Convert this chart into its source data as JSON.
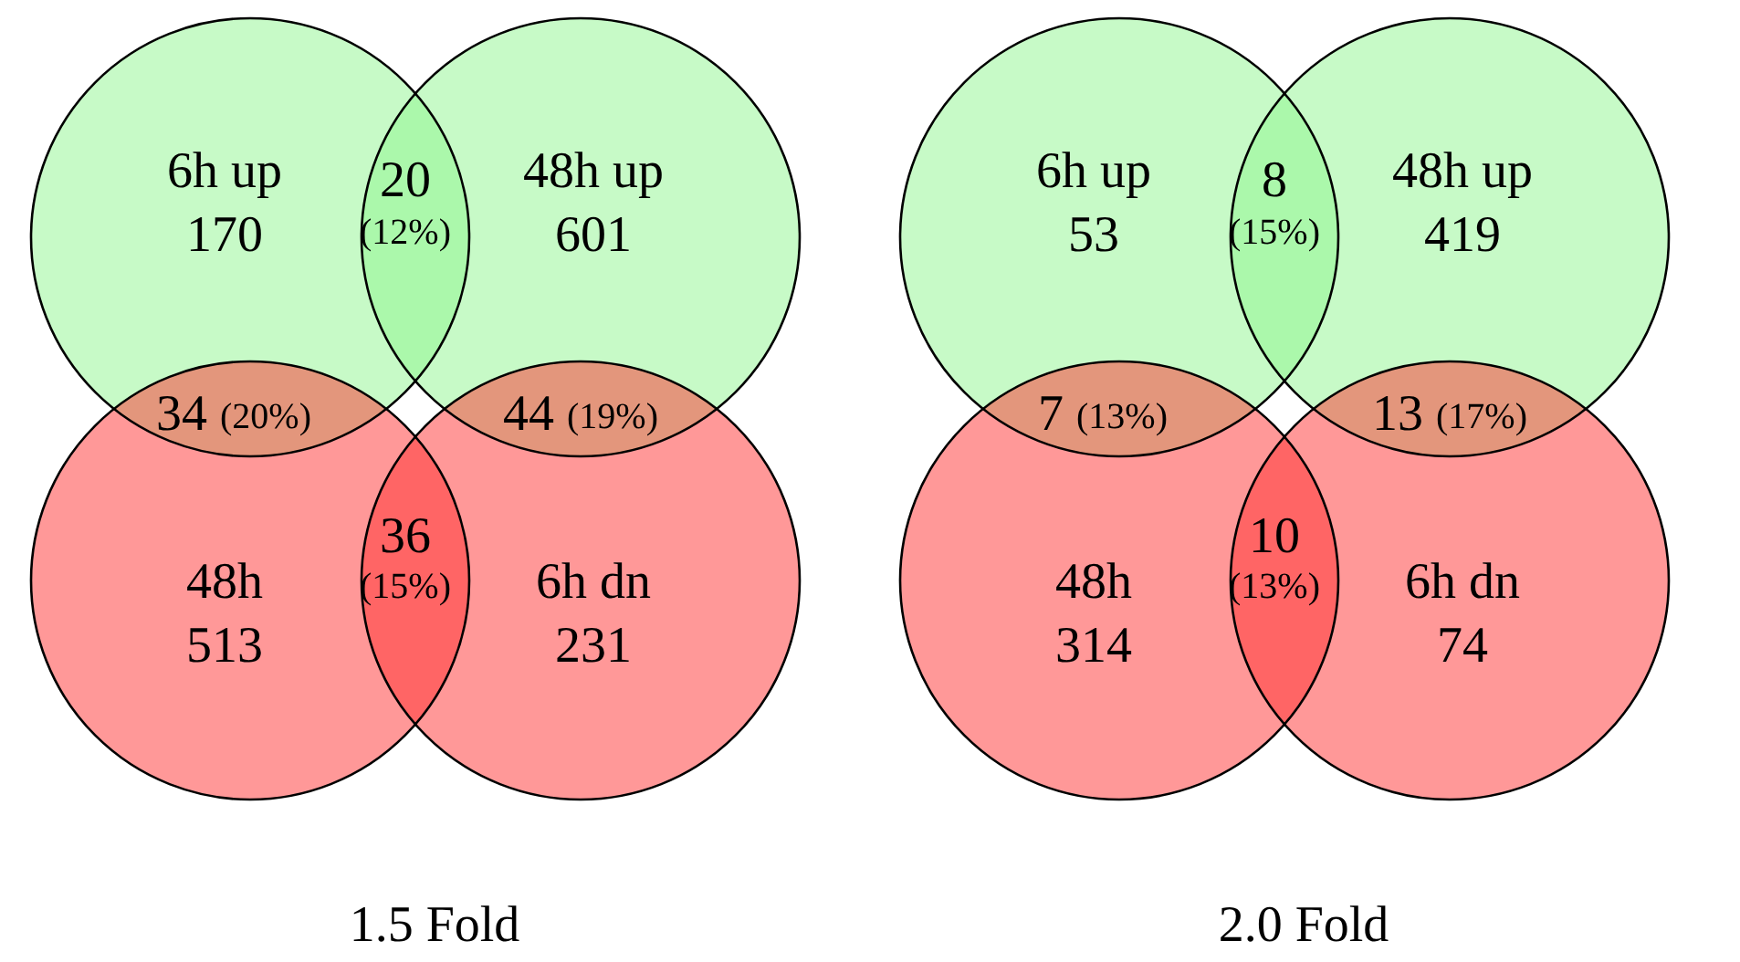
{
  "chart_data": [
    {
      "type": "other",
      "title": "1.5 Fold",
      "data_labels": true,
      "categories": [
        "6h up",
        "48h up",
        "48h",
        "6h dn"
      ],
      "values": [
        170,
        601,
        513,
        231
      ],
      "colors": [
        "#90f590",
        "#90f590",
        "#ff3131",
        "#ff3131"
      ],
      "annotations": [
        "20",
        "(12%)",
        "34",
        "(20%)",
        "44",
        "(19%)",
        "36",
        "(15%)"
      ]
    },
    {
      "type": "other",
      "title": "2.0 Fold",
      "data_labels": true,
      "categories": [
        "6h up",
        "48h up",
        "48h",
        "6h dn"
      ],
      "values": [
        53,
        419,
        314,
        74
      ],
      "colors": [
        "#90f590",
        "#90f590",
        "#ff3131",
        "#ff3131"
      ],
      "annotations": [
        "8",
        "(15%)",
        "7",
        "(13%)",
        "13",
        "(17%)",
        "10",
        "(13%)"
      ]
    }
  ]
}
